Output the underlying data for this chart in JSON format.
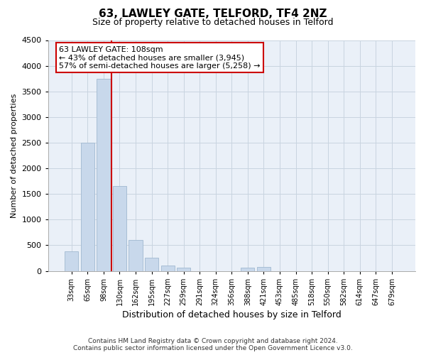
{
  "title": "63, LAWLEY GATE, TELFORD, TF4 2NZ",
  "subtitle": "Size of property relative to detached houses in Telford",
  "xlabel": "Distribution of detached houses by size in Telford",
  "ylabel": "Number of detached properties",
  "footer_line1": "Contains HM Land Registry data © Crown copyright and database right 2024.",
  "footer_line2": "Contains public sector information licensed under the Open Government Licence v3.0.",
  "property_label": "63 LAWLEY GATE: 108sqm",
  "annotation_line1": "← 43% of detached houses are smaller (3,945)",
  "annotation_line2": "57% of semi-detached houses are larger (5,258) →",
  "categories": [
    "33sqm",
    "65sqm",
    "98sqm",
    "130sqm",
    "162sqm",
    "195sqm",
    "227sqm",
    "259sqm",
    "291sqm",
    "324sqm",
    "356sqm",
    "388sqm",
    "421sqm",
    "453sqm",
    "485sqm",
    "518sqm",
    "550sqm",
    "582sqm",
    "614sqm",
    "647sqm",
    "679sqm"
  ],
  "values": [
    375,
    2500,
    3750,
    1650,
    600,
    250,
    100,
    60,
    0,
    0,
    0,
    60,
    75,
    0,
    0,
    0,
    0,
    0,
    0,
    0,
    0
  ],
  "bar_color": "#c8d8eb",
  "bar_edge_color": "#a0b8d0",
  "red_line_x": 2.5,
  "ylim": [
    0,
    4500
  ],
  "yticks": [
    0,
    500,
    1000,
    1500,
    2000,
    2500,
    3000,
    3500,
    4000,
    4500
  ],
  "annotation_box_facecolor": "#ffffff",
  "annotation_box_edgecolor": "#cc0000",
  "red_line_color": "#cc0000",
  "grid_color": "#c8d4e0",
  "background_color": "#eaf0f8",
  "title_fontsize": 11,
  "subtitle_fontsize": 9,
  "ylabel_fontsize": 8,
  "xlabel_fontsize": 9,
  "tick_fontsize": 8,
  "annotation_fontsize": 8,
  "footer_fontsize": 6.5
}
